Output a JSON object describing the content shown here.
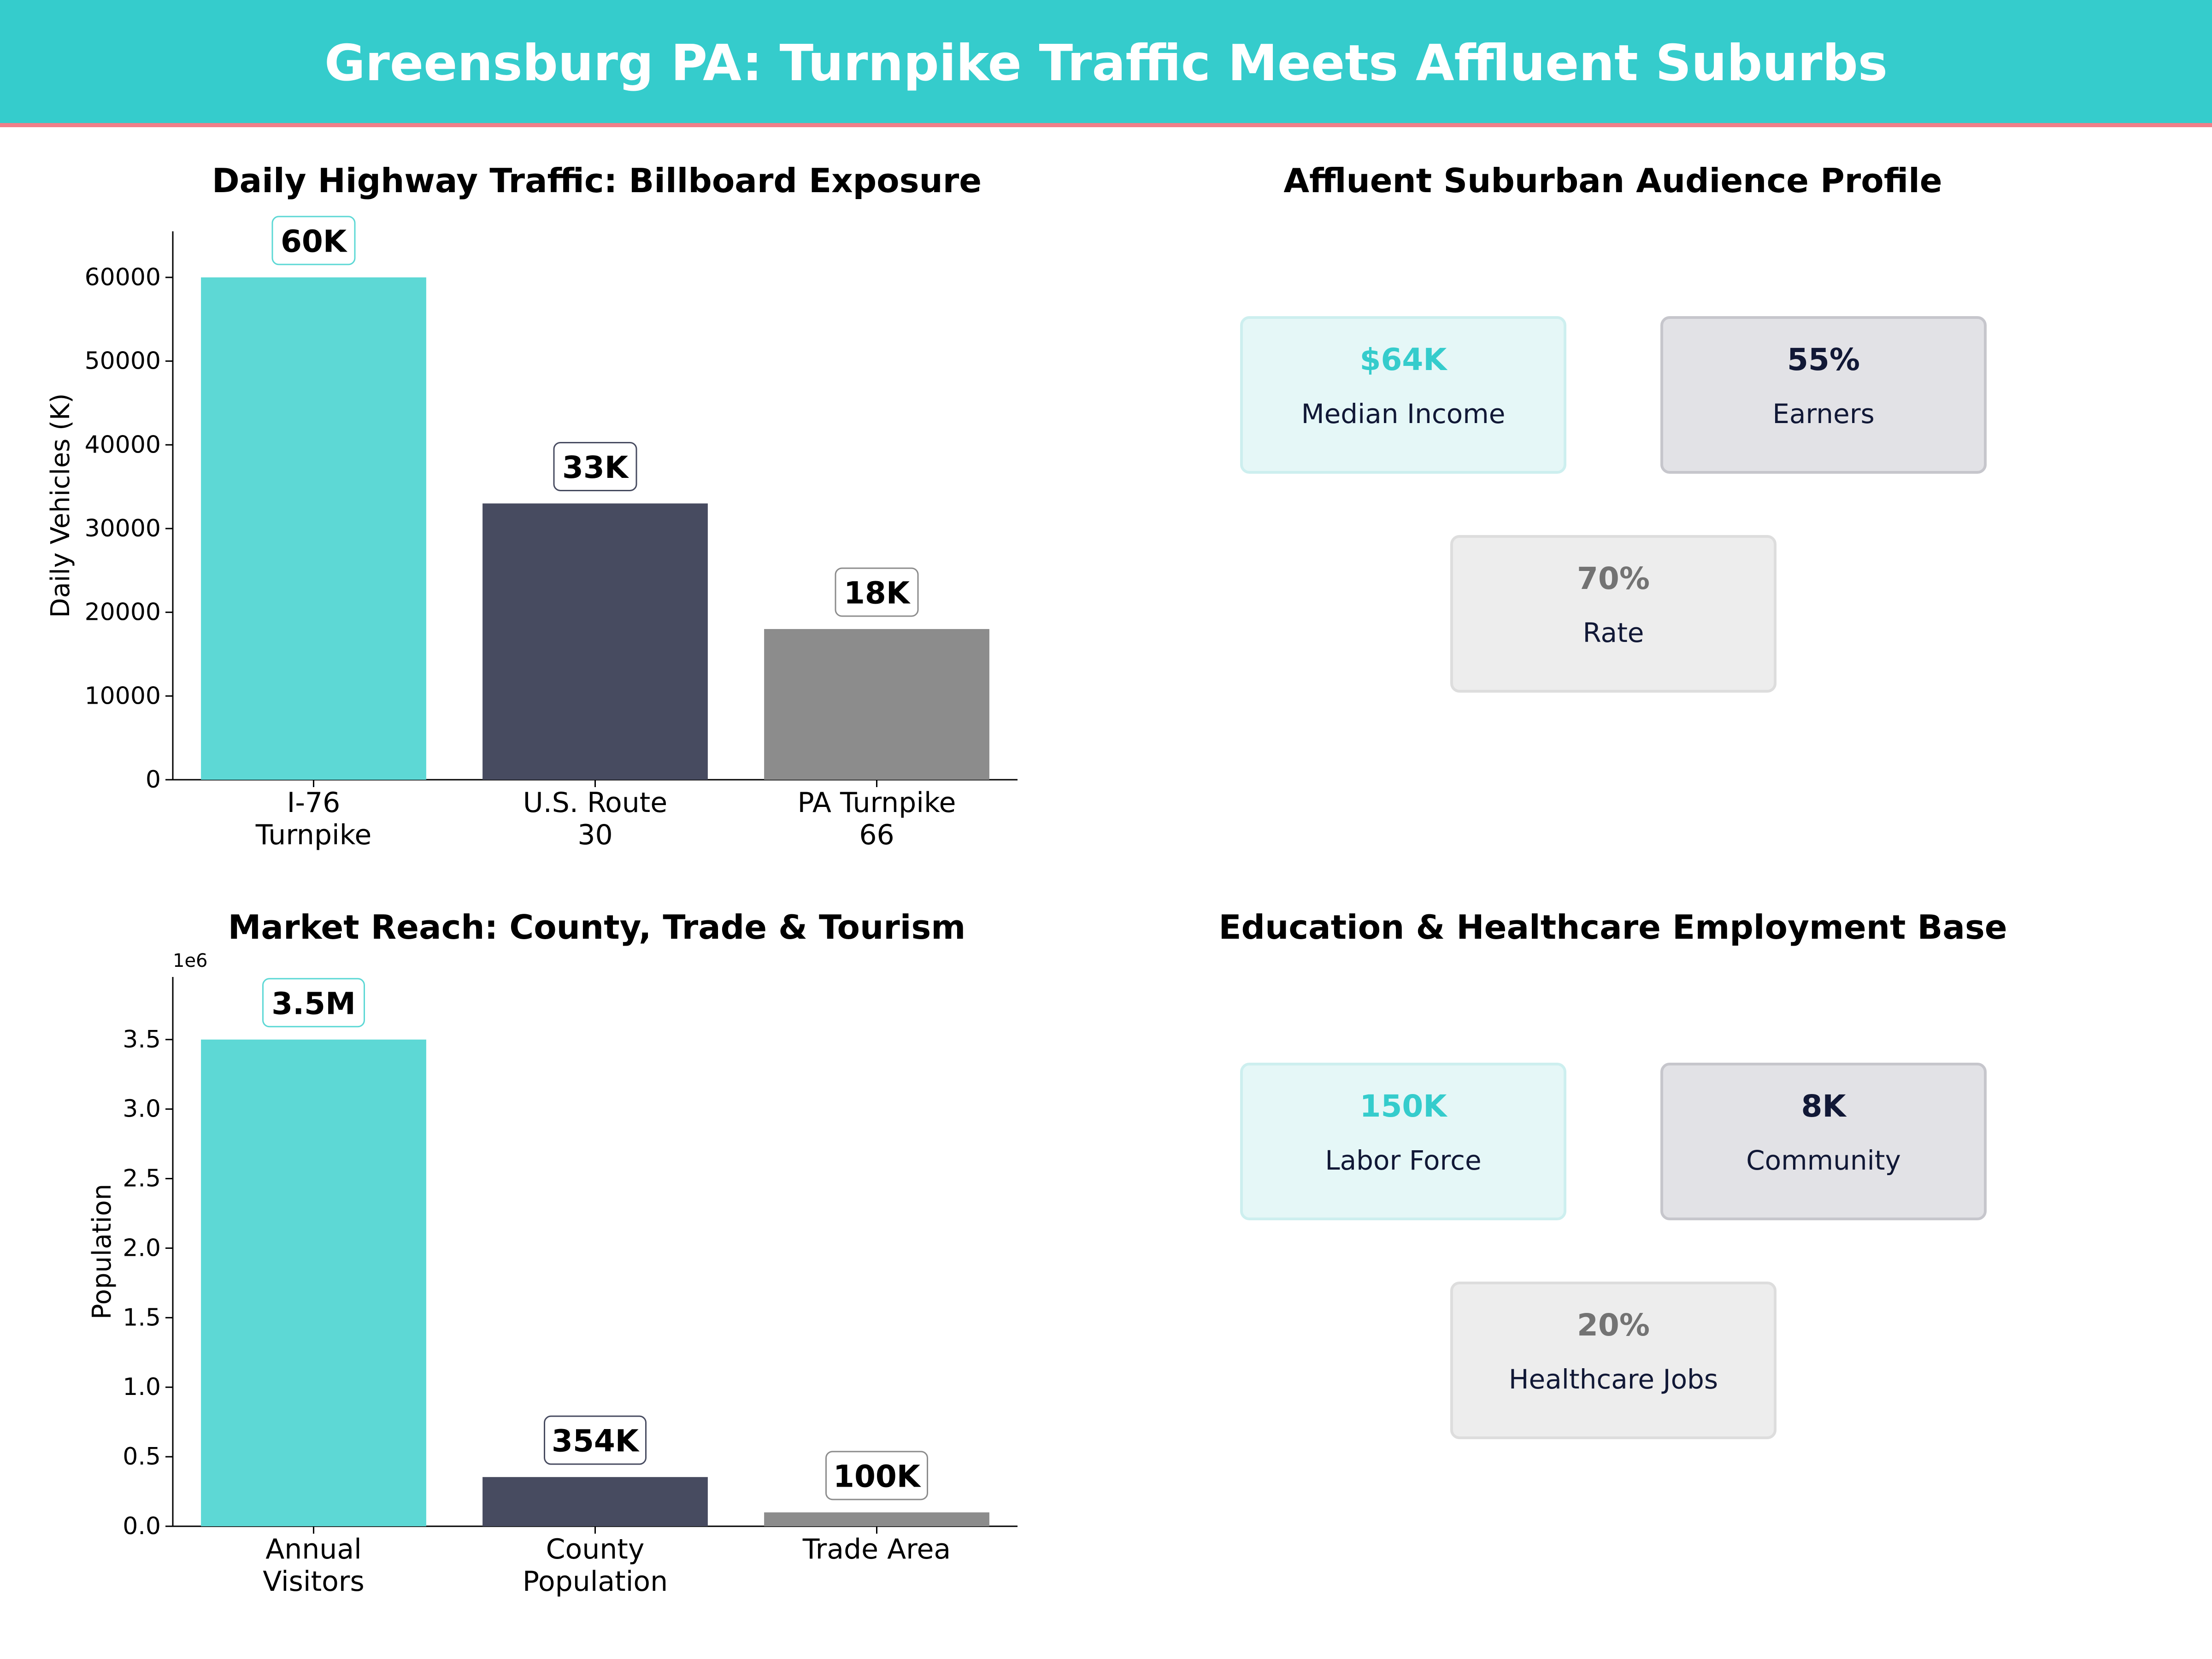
{
  "banner": {
    "title": "Greensburg PA: Turnpike Traffic Meets Affluent Suburbs"
  },
  "colors": {
    "accent": "#35cccc",
    "banner_border": "#f07f89",
    "navy": "#111836",
    "gray": "#737373"
  },
  "chart_data": [
    {
      "type": "bar",
      "title": "Daily Highway Traffic: Billboard Exposure",
      "xlabel": "",
      "ylabel": "Daily Vehicles (K)",
      "categories": [
        [
          "I-76",
          "Turnpike"
        ],
        [
          "U.S. Route",
          "30"
        ],
        [
          "PA Turnpike",
          "66"
        ]
      ],
      "values": [
        60000,
        33000,
        18000
      ],
      "data_labels": [
        "60K",
        "33K",
        "18K"
      ],
      "bar_colors": [
        "#5dd8d5",
        "#474b60",
        "#8c8c8c"
      ],
      "label_border_colors": [
        "#5dd8d5",
        "#474b60",
        "#8c8c8c"
      ],
      "ylim": [
        0,
        65500
      ],
      "yticks": [
        0,
        10000,
        20000,
        30000,
        40000,
        50000,
        60000
      ],
      "ytick_labels": [
        "0",
        "10000",
        "20000",
        "30000",
        "40000",
        "50000",
        "60000"
      ],
      "offset_text": "",
      "grid": false
    },
    {
      "type": "bar",
      "title": "Market Reach: County, Trade & Tourism",
      "xlabel": "",
      "ylabel": "Population",
      "categories": [
        [
          "Annual",
          "Visitors"
        ],
        [
          "County",
          "Population"
        ],
        [
          "Trade Area"
        ]
      ],
      "values": [
        3500000,
        354000,
        100000
      ],
      "data_labels": [
        "3.5M",
        "354K",
        "100K"
      ],
      "bar_colors": [
        "#5dd8d5",
        "#474b60",
        "#8c8c8c"
      ],
      "label_border_colors": [
        "#5dd8d5",
        "#474b60",
        "#8c8c8c"
      ],
      "ylim": [
        0,
        3950000
      ],
      "yticks": [
        0,
        500000,
        1000000,
        1500000,
        2000000,
        2500000,
        3000000,
        3500000
      ],
      "ytick_labels": [
        "0.0",
        "0.5",
        "1.0",
        "1.5",
        "2.0",
        "2.5",
        "3.0",
        "3.5"
      ],
      "offset_text": "1e6",
      "grid": false
    }
  ],
  "audience": {
    "title": "Affluent Suburban Audience Profile",
    "cards": [
      {
        "value": "$64K",
        "label": "Median Income"
      },
      {
        "value": "55%",
        "label": "Earners"
      },
      {
        "value": "70%",
        "label": "Rate"
      }
    ]
  },
  "employment": {
    "title": "Education & Healthcare Employment Base",
    "cards": [
      {
        "value": "150K",
        "label": "Labor Force"
      },
      {
        "value": "8K",
        "label": "Community"
      },
      {
        "value": "20%",
        "label": "Healthcare Jobs"
      }
    ]
  }
}
